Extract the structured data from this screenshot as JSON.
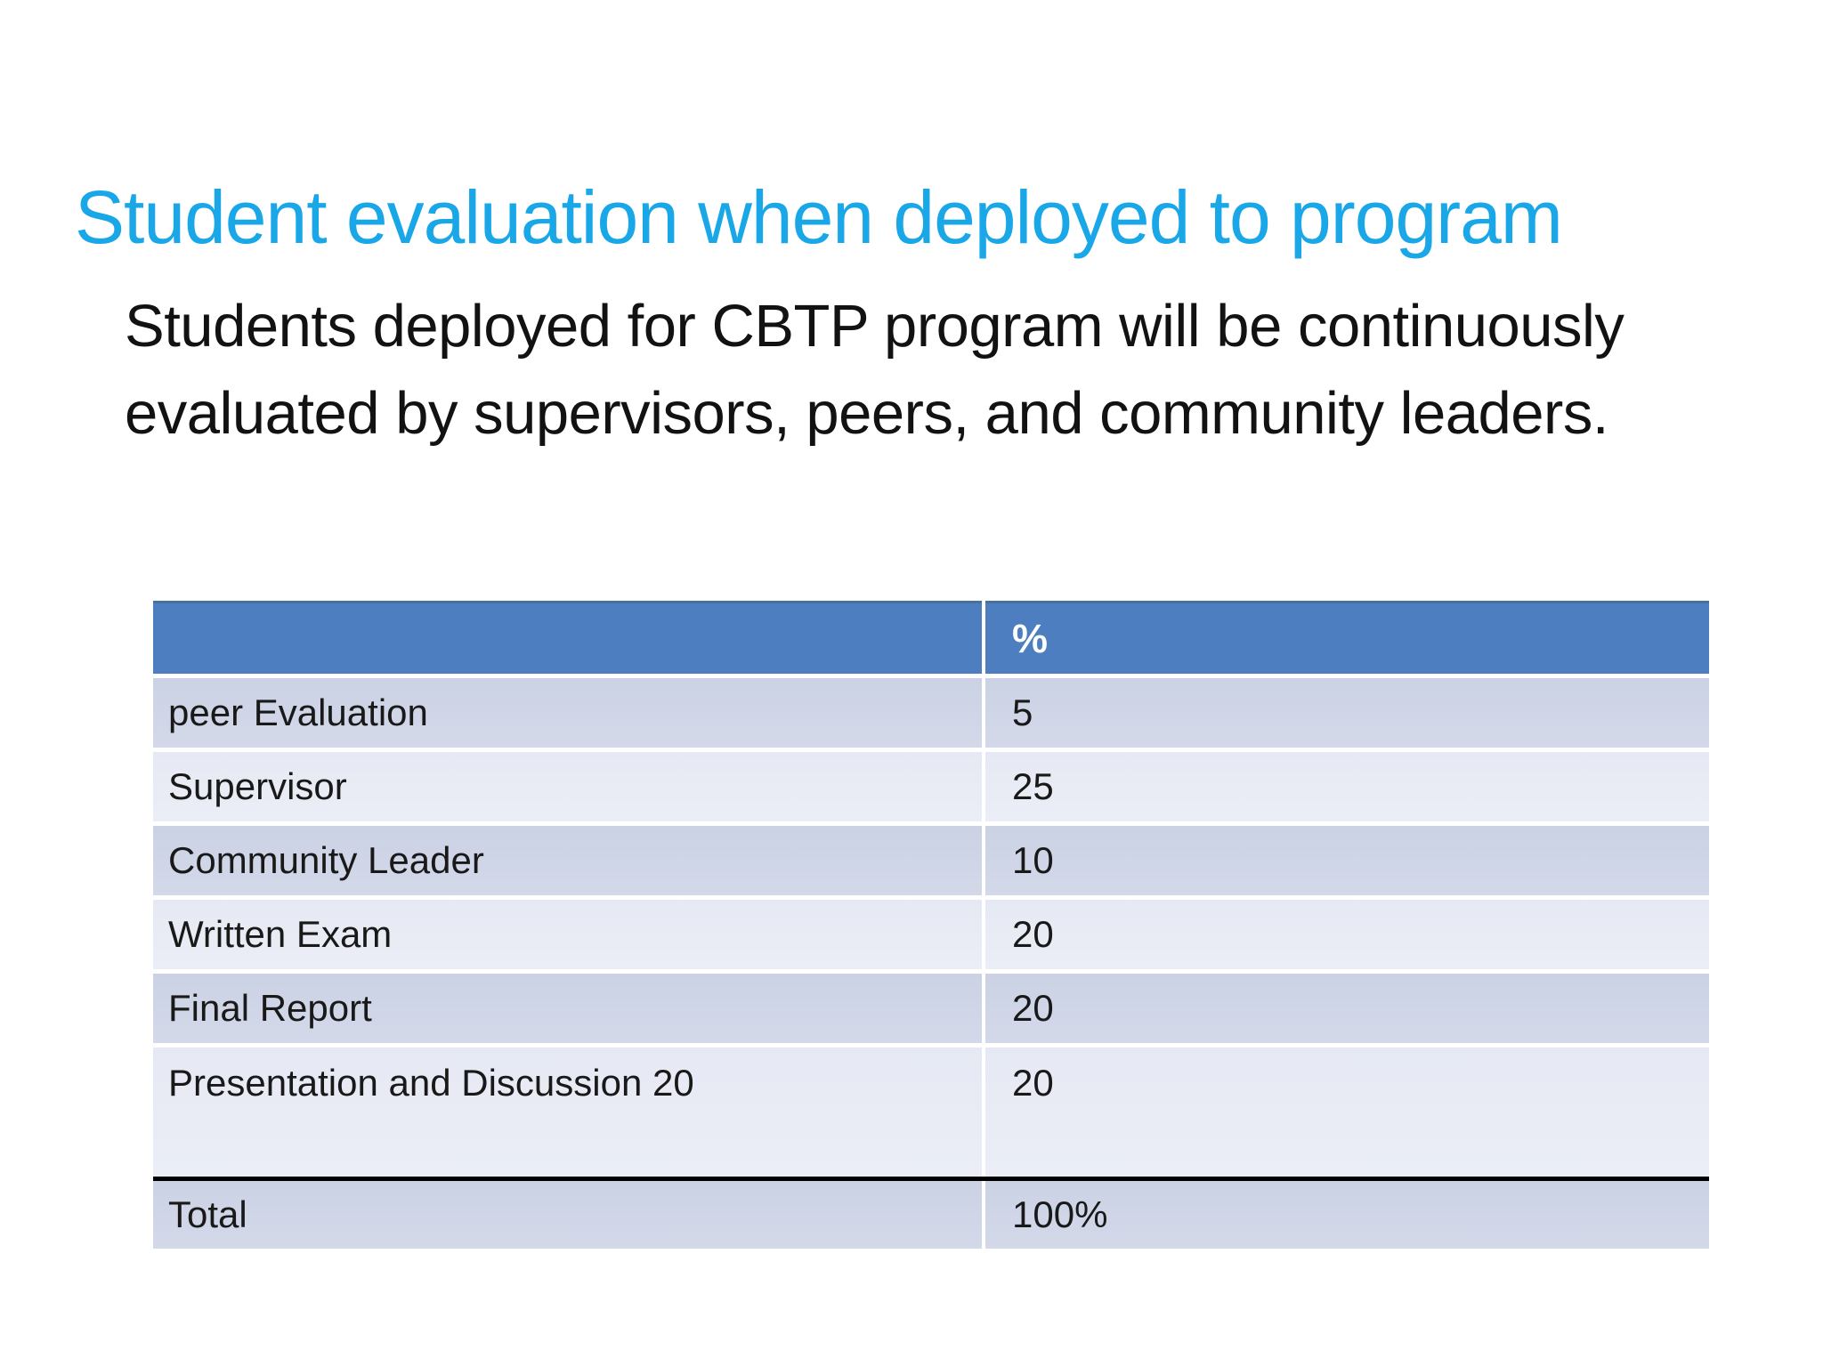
{
  "slide": {
    "title": "Student evaluation when deployed to program",
    "paragraph": "Students deployed for CBTP program will be continuously evaluated by supervisors, peers, and community leaders.",
    "table": {
      "header": {
        "criteria_label": "",
        "percent_label": "%"
      },
      "rows": [
        {
          "label": "peer Evaluation",
          "value": "5"
        },
        {
          "label": "Supervisor",
          "value": "25"
        },
        {
          "label": "Community Leader",
          "value": "10"
        },
        {
          "label": "Written Exam",
          "value": "20"
        },
        {
          "label": "Final Report",
          "value": "20"
        },
        {
          "label": "Presentation and Discussion 20",
          "value": "20"
        }
      ],
      "total_row": {
        "label": "Total",
        "value": "100%"
      }
    },
    "colors": {
      "title_text": "#1AA7E8",
      "body_text": "#121212",
      "table_header_bg": "#4D7EBF",
      "table_header_text": "#FFFFFF",
      "row_band_dark": "#CFD6E7",
      "row_band_light": "#E9ECF5",
      "column_divider": "#FFFFFF",
      "total_divider_line": "#000000"
    }
  }
}
